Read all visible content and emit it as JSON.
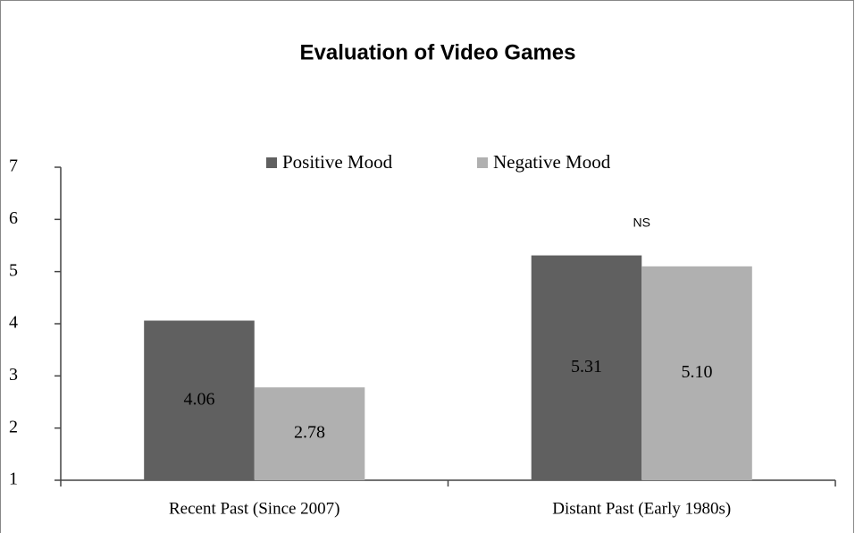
{
  "chart_data": {
    "type": "bar",
    "title": "Evaluation of Video Games",
    "categories": [
      "Recent Past (Since 2007)",
      "Distant Past (Early 1980s)"
    ],
    "series": [
      {
        "name": "Positive Mood",
        "color": "#606060",
        "values": [
          4.06,
          5.31
        ]
      },
      {
        "name": "Negative Mood",
        "color": "#b0b0b0",
        "values": [
          2.78,
          5.1
        ],
        "value_labels": [
          "2.78",
          "5.10"
        ]
      }
    ],
    "annotation": "NS",
    "ylim": [
      1,
      7
    ],
    "yticks": [
      1,
      2,
      3,
      4,
      5,
      6,
      7
    ],
    "grid": false,
    "legend": "top"
  }
}
